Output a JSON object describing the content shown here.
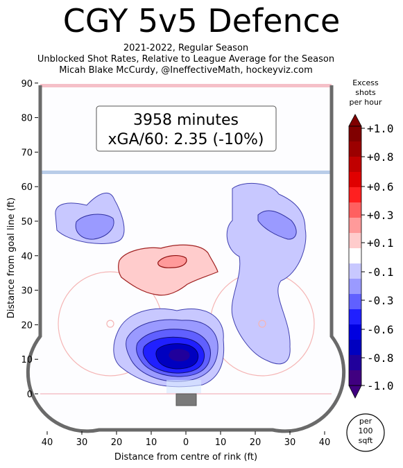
{
  "title": "CGY 5v5 Defence",
  "subtitle_lines": [
    "2021-2022, Regular Season",
    "Unblocked Shot Rates, Relative to League Average for the Season",
    "Micah Blake McCurdy, @IneffectiveMath, hockeyviz.com"
  ],
  "stats_box": {
    "minutes": "3958 minutes",
    "xga": "xGA/60: 2.35 (-10%)"
  },
  "colorbar": {
    "title_lines": [
      "Excess",
      "shots",
      "per hour"
    ],
    "tick_labels": [
      "+1.0",
      "+0.8",
      "+0.6",
      "+0.3",
      "+0.1",
      "-0.1",
      "-0.3",
      "-0.6",
      "-0.8",
      "-1.0"
    ],
    "tick_values": [
      1.0,
      0.8,
      0.6,
      0.3,
      0.1,
      -0.1,
      -0.3,
      -0.6,
      -0.8,
      -1.0
    ],
    "colors": [
      "#800000",
      "#9b0000",
      "#c00000",
      "#e00000",
      "#ff2020",
      "#ff6060",
      "#ff9a9a",
      "#ffcccc",
      "#ffffff",
      "#c8c8ff",
      "#9a9aff",
      "#6060ff",
      "#2020ff",
      "#0000e0",
      "#0000c0",
      "#20009b",
      "#400080"
    ],
    "unit_badge": [
      "per",
      "100",
      "sqft"
    ]
  },
  "chart_data": {
    "type": "heatmap",
    "title": "CGY 5v5 Defence",
    "xlabel": "Distance from centre of rink (ft)",
    "ylabel": "Distance from goal line (ft)",
    "xlim": [
      -42.5,
      42.5
    ],
    "ylim": [
      -11,
      89
    ],
    "x_ticks": [
      -40,
      -30,
      -20,
      -10,
      0,
      10,
      20,
      30,
      40
    ],
    "x_tick_labels": [
      "40",
      "30",
      "20",
      "10",
      "0",
      "10",
      "20",
      "30",
      "40"
    ],
    "y_ticks": [
      0,
      10,
      20,
      30,
      40,
      50,
      60,
      70,
      80,
      90
    ],
    "y_tick_labels": [
      "0",
      "10",
      "20",
      "30",
      "40",
      "50",
      "60",
      "70",
      "80",
      "90"
    ],
    "regions": [
      {
        "name": "slot",
        "center": [
          -1,
          12
        ],
        "excess": -1.0
      },
      {
        "name": "slot-inner",
        "center": [
          -1,
          12
        ],
        "excess": -0.6
      },
      {
        "name": "left-point",
        "center": [
          -25,
          49
        ],
        "excess": -0.3
      },
      {
        "name": "right-point",
        "center": [
          26,
          48
        ],
        "excess": -0.3
      },
      {
        "name": "high-slot-left",
        "center": [
          -6,
          37
        ],
        "excess": 0.3
      },
      {
        "name": "right-circle",
        "center": [
          22,
          18
        ],
        "excess": -0.1
      }
    ]
  }
}
